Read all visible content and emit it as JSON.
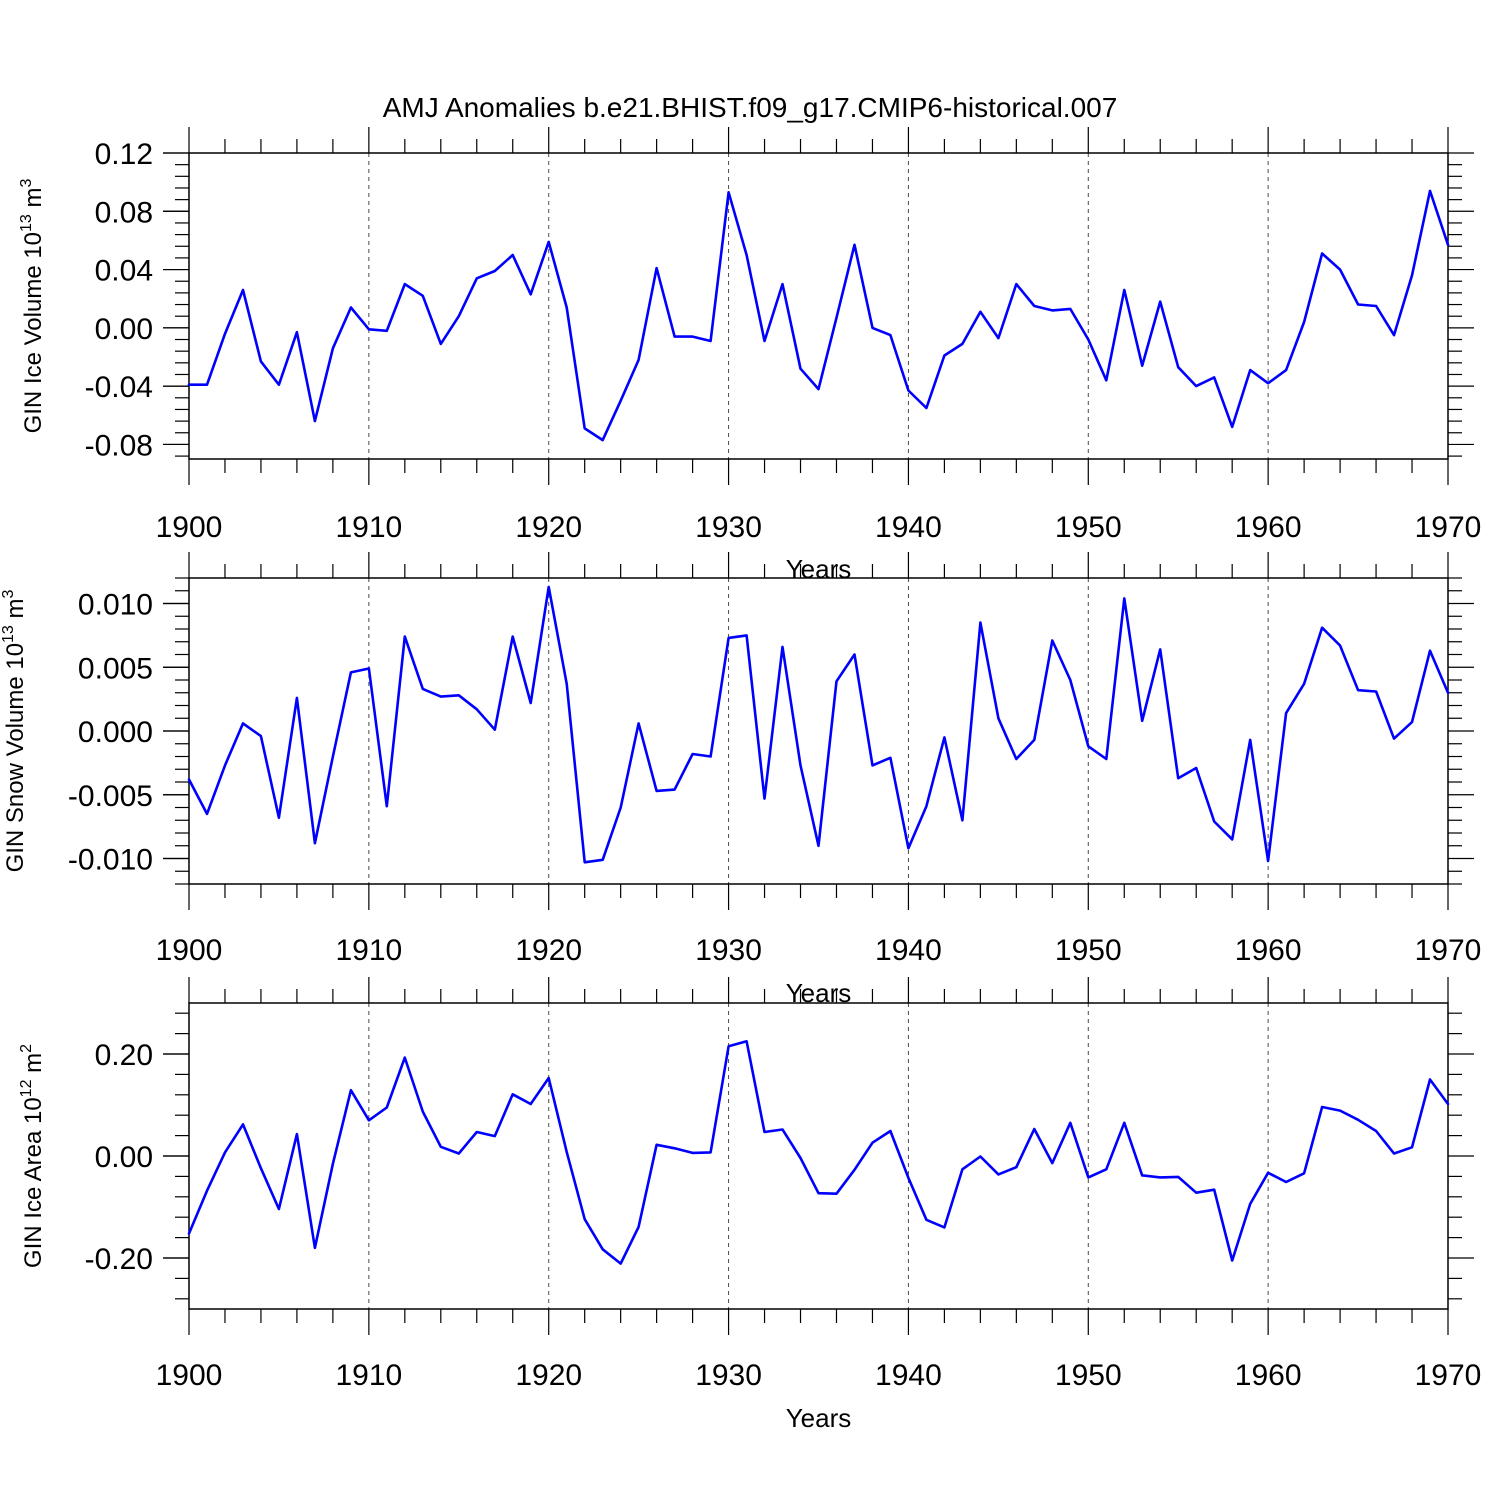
{
  "title": "AMJ Anomalies b.e21.BHIST.f09_g17.CMIP6-historical.007",
  "colors": {
    "line": "#0000ff",
    "axis": "#000000",
    "grid": "#000000"
  },
  "chart_data": [
    {
      "type": "line",
      "ylabel": "GIN Ice Volume 10",
      "ylabel_exp": "13",
      "ylabel_unit": " m",
      "ylabel_unit_exp": "3",
      "xlabel": "Years",
      "xlim": [
        1900,
        1970
      ],
      "ylim": [
        -0.09,
        0.12
      ],
      "xticks": [
        "1900",
        "1910",
        "1920",
        "1930",
        "1940",
        "1950",
        "1960",
        "1970"
      ],
      "yticks": [
        "-0.08",
        "-0.04",
        "0.00",
        "0.04",
        "0.08",
        "0.12"
      ],
      "ytick_values": [
        -0.08,
        -0.04,
        0.0,
        0.04,
        0.08,
        0.12
      ],
      "grid": "vertical dashed at decades",
      "x": [
        1900,
        1901,
        1902,
        1903,
        1904,
        1905,
        1906,
        1907,
        1908,
        1909,
        1910,
        1911,
        1912,
        1913,
        1914,
        1915,
        1916,
        1917,
        1918,
        1919,
        1920,
        1921,
        1922,
        1923,
        1924,
        1925,
        1926,
        1927,
        1928,
        1929,
        1930,
        1931,
        1932,
        1933,
        1934,
        1935,
        1936,
        1937,
        1938,
        1939,
        1940,
        1941,
        1942,
        1943,
        1944,
        1945,
        1946,
        1947,
        1948,
        1949,
        1950,
        1951,
        1952,
        1953,
        1954,
        1955,
        1956,
        1957,
        1958,
        1959,
        1960,
        1961,
        1962,
        1963,
        1964,
        1965,
        1966,
        1967,
        1968,
        1969,
        1970
      ],
      "series": [
        {
          "values": [
            -0.039,
            -0.039,
            -0.004,
            0.026,
            -0.023,
            -0.039,
            -0.003,
            -0.064,
            -0.014,
            0.014,
            -0.001,
            -0.002,
            0.03,
            0.022,
            -0.011,
            0.008,
            0.034,
            0.039,
            0.05,
            0.023,
            0.059,
            0.014,
            -0.069,
            -0.077,
            -0.05,
            -0.022,
            0.041,
            -0.006,
            -0.006,
            -0.009,
            0.093,
            0.05,
            -0.009,
            0.03,
            -0.028,
            -0.042,
            0.007,
            0.057,
            0.0,
            -0.005,
            -0.043,
            -0.055,
            -0.019,
            -0.011,
            0.011,
            -0.007,
            0.03,
            0.015,
            0.012,
            0.013,
            -0.008,
            -0.036,
            0.026,
            -0.026,
            0.018,
            -0.027,
            -0.04,
            -0.034,
            -0.068,
            -0.029,
            -0.038,
            -0.029,
            0.004,
            0.051,
            0.04,
            0.016,
            0.015,
            -0.005,
            0.036,
            0.094,
            0.057
          ]
        }
      ]
    },
    {
      "type": "line",
      "ylabel": "GIN Snow Volume 10",
      "ylabel_exp": "13",
      "ylabel_unit": " m",
      "ylabel_unit_exp": "3",
      "xlabel": "Years",
      "xlim": [
        1900,
        1970
      ],
      "ylim": [
        -0.012,
        0.012
      ],
      "xticks": [
        "1900",
        "1910",
        "1920",
        "1930",
        "1940",
        "1950",
        "1960",
        "1970"
      ],
      "yticks": [
        "-0.010",
        "-0.005",
        "0.000",
        "0.005",
        "0.010"
      ],
      "ytick_values": [
        -0.01,
        -0.005,
        0.0,
        0.005,
        0.01
      ],
      "grid": "vertical dashed at decades",
      "x": [
        1900,
        1901,
        1902,
        1903,
        1904,
        1905,
        1906,
        1907,
        1908,
        1909,
        1910,
        1911,
        1912,
        1913,
        1914,
        1915,
        1916,
        1917,
        1918,
        1919,
        1920,
        1921,
        1922,
        1923,
        1924,
        1925,
        1926,
        1927,
        1928,
        1929,
        1930,
        1931,
        1932,
        1933,
        1934,
        1935,
        1936,
        1937,
        1938,
        1939,
        1940,
        1941,
        1942,
        1943,
        1944,
        1945,
        1946,
        1947,
        1948,
        1949,
        1950,
        1951,
        1952,
        1953,
        1954,
        1955,
        1956,
        1957,
        1958,
        1959,
        1960,
        1961,
        1962,
        1963,
        1964,
        1965,
        1966,
        1967,
        1968,
        1969,
        1970
      ],
      "series": [
        {
          "values": [
            -0.0038,
            -0.0065,
            -0.0027,
            0.0006,
            -0.0004,
            -0.0068,
            0.0026,
            -0.0088,
            -0.002,
            0.0046,
            0.0049,
            -0.0059,
            0.0074,
            0.0033,
            0.0027,
            0.0028,
            0.0017,
            0.0001,
            0.0074,
            0.0022,
            0.0113,
            0.0037,
            -0.0103,
            -0.0101,
            -0.006,
            0.0006,
            -0.0047,
            -0.0046,
            -0.0018,
            -0.002,
            0.0073,
            0.0075,
            -0.0053,
            0.0066,
            -0.0027,
            -0.009,
            0.0039,
            0.006,
            -0.0027,
            -0.0021,
            -0.0092,
            -0.0059,
            -0.0005,
            -0.007,
            0.0085,
            0.001,
            -0.0022,
            -0.0007,
            0.0071,
            0.004,
            -0.0012,
            -0.0022,
            0.0104,
            0.0008,
            0.0064,
            -0.0037,
            -0.0029,
            -0.0071,
            -0.0085,
            -0.0007,
            -0.0102,
            0.0014,
            0.0037,
            0.0081,
            0.0067,
            0.0032,
            0.0031,
            -0.0006,
            0.0007,
            0.0063,
            0.003
          ]
        }
      ]
    },
    {
      "type": "line",
      "ylabel": "GIN Ice Area 10",
      "ylabel_exp": "12",
      "ylabel_unit": " m",
      "ylabel_unit_exp": "2",
      "xlabel": "Years",
      "xlim": [
        1900,
        1970
      ],
      "ylim": [
        -0.3,
        0.3
      ],
      "xticks": [
        "1900",
        "1910",
        "1920",
        "1930",
        "1940",
        "1950",
        "1960",
        "1970"
      ],
      "yticks": [
        "-0.20",
        "0.00",
        "0.20"
      ],
      "ytick_values": [
        -0.2,
        0.0,
        0.2
      ],
      "grid": "vertical dashed at decades",
      "x": [
        1900,
        1901,
        1902,
        1903,
        1904,
        1905,
        1906,
        1907,
        1908,
        1909,
        1910,
        1911,
        1912,
        1913,
        1914,
        1915,
        1916,
        1917,
        1918,
        1919,
        1920,
        1921,
        1922,
        1923,
        1924,
        1925,
        1926,
        1927,
        1928,
        1929,
        1930,
        1931,
        1932,
        1933,
        1934,
        1935,
        1936,
        1937,
        1938,
        1939,
        1940,
        1941,
        1942,
        1943,
        1944,
        1945,
        1946,
        1947,
        1948,
        1949,
        1950,
        1951,
        1952,
        1953,
        1954,
        1955,
        1956,
        1957,
        1958,
        1959,
        1960,
        1961,
        1962,
        1963,
        1964,
        1965,
        1966,
        1967,
        1968,
        1969,
        1970
      ],
      "series": [
        {
          "values": [
            -0.152,
            -0.068,
            0.007,
            0.062,
            -0.024,
            -0.104,
            0.043,
            -0.18,
            -0.015,
            0.129,
            0.07,
            0.095,
            0.193,
            0.087,
            0.018,
            0.005,
            0.047,
            0.039,
            0.121,
            0.102,
            0.153,
            0.008,
            -0.124,
            -0.183,
            -0.211,
            -0.139,
            0.022,
            0.015,
            0.006,
            0.007,
            0.215,
            0.225,
            0.047,
            0.052,
            -0.004,
            -0.073,
            -0.074,
            -0.027,
            0.026,
            0.049,
            -0.043,
            -0.125,
            -0.14,
            -0.026,
            -0.001,
            -0.036,
            -0.022,
            0.053,
            -0.014,
            0.065,
            -0.042,
            -0.026,
            0.065,
            -0.038,
            -0.042,
            -0.041,
            -0.072,
            -0.066,
            -0.205,
            -0.094,
            -0.033,
            -0.051,
            -0.034,
            0.096,
            0.089,
            0.071,
            0.049,
            0.005,
            0.017,
            0.15,
            0.102
          ]
        }
      ]
    }
  ]
}
